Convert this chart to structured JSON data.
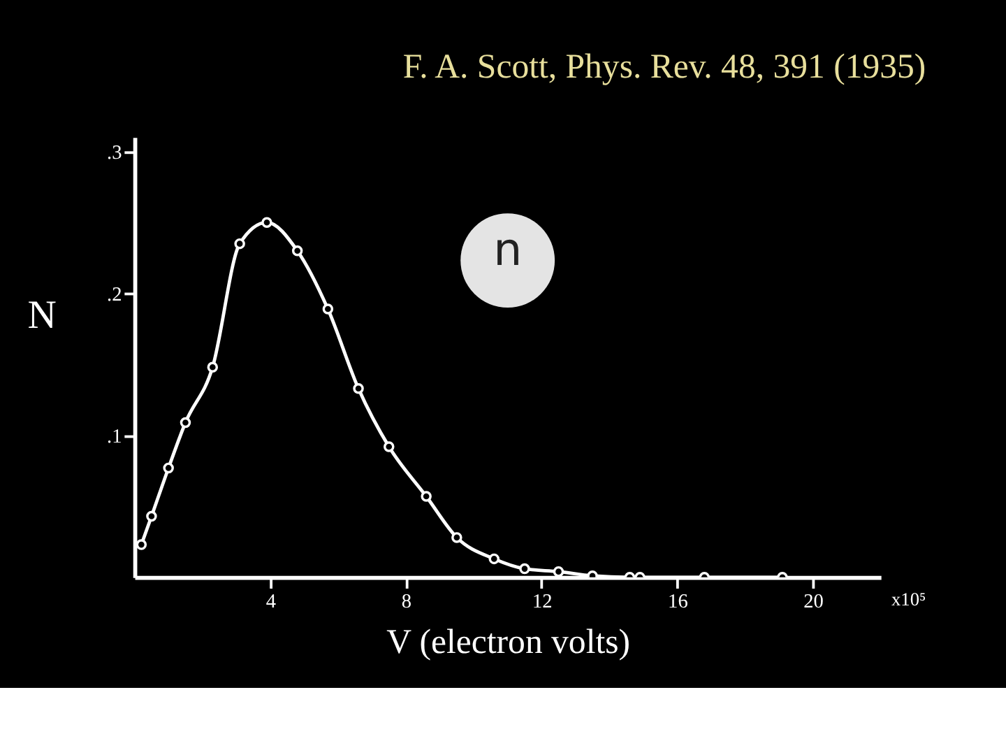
{
  "chart_data": {
    "type": "line",
    "title": "F. A. Scott, Phys. Rev. 48, 391 (1935)",
    "xlabel": "V (electron volts)",
    "ylabel": "N",
    "series": [
      {
        "color": "#ffffff",
        "marker": "circle",
        "x": [
          0.2,
          0.5,
          1.0,
          1.5,
          2.3,
          3.1,
          3.9,
          4.8,
          5.7,
          6.6,
          7.5,
          8.6,
          9.5,
          10.6,
          11.5,
          12.5,
          13.5,
          14.6,
          14.9,
          16.8,
          19.1
        ],
        "values": [
          0.023,
          0.043,
          0.077,
          0.109,
          0.148,
          0.235,
          0.25,
          0.23,
          0.189,
          0.133,
          0.092,
          0.057,
          0.028,
          0.013,
          0.006,
          0.004,
          0.001,
          0.0,
          0.0,
          0.0,
          0.0
        ]
      }
    ],
    "xlim": [
      0,
      22
    ],
    "xticks": [
      4,
      8,
      12,
      16,
      20
    ],
    "ylim": [
      0,
      0.31
    ],
    "yticks": [
      {
        "value": 0.1,
        "label": ".1"
      },
      {
        "value": 0.2,
        "label": ".2"
      },
      {
        "value": 0.3,
        "label": ".3"
      }
    ],
    "annotations": [
      "x10⁵",
      "n"
    ],
    "grid": false
  }
}
